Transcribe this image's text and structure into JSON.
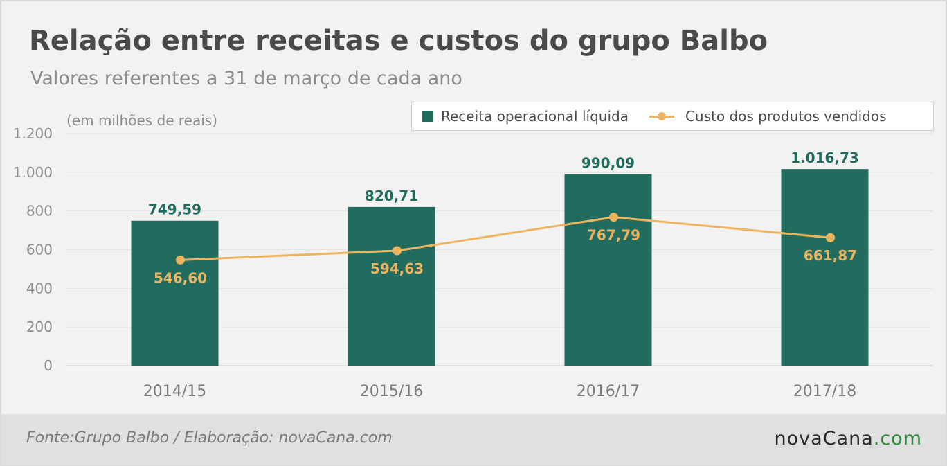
{
  "header": {
    "title": "Relação entre receitas e custos do grupo Balbo",
    "subtitle": "Valores referentes a 31 de março de cada ano",
    "unit_note": "(em milhões de reais)"
  },
  "chart_data": {
    "type": "bar",
    "categories": [
      "2014/15",
      "2015/16",
      "2016/17",
      "2017/18"
    ],
    "series": [
      {
        "name": "Receita operacional líquida",
        "type": "bar",
        "values": [
          749.59,
          820.71,
          990.09,
          1016.73
        ],
        "labels": [
          "749,59",
          "820,71",
          "990,09",
          "1.016,73"
        ],
        "color": "#226b5f"
      },
      {
        "name": "Custo dos produtos vendidos",
        "type": "line",
        "values": [
          546.6,
          594.63,
          767.79,
          661.87
        ],
        "labels": [
          "546,60",
          "594,63",
          "767,79",
          "661,87"
        ],
        "color": "#ecb45f"
      }
    ],
    "ylim": [
      0,
      1200
    ],
    "yticks": [
      0,
      200,
      400,
      600,
      800,
      1000,
      1200
    ],
    "ytick_labels": [
      "0",
      "200",
      "400",
      "600",
      "800",
      "1.000",
      "1.200"
    ],
    "grid": true,
    "legend_position": "top-right"
  },
  "footer": {
    "source": "Fonte:Grupo Balbo / Elaboração: novaCana.com",
    "logo_nova": "nova",
    "logo_cana": "Cana",
    "logo_com": ".com"
  },
  "colors": {
    "bar": "#226b5f",
    "line": "#ecb45f",
    "background": "#f2f2f2",
    "footer": "#e0e0e0"
  }
}
